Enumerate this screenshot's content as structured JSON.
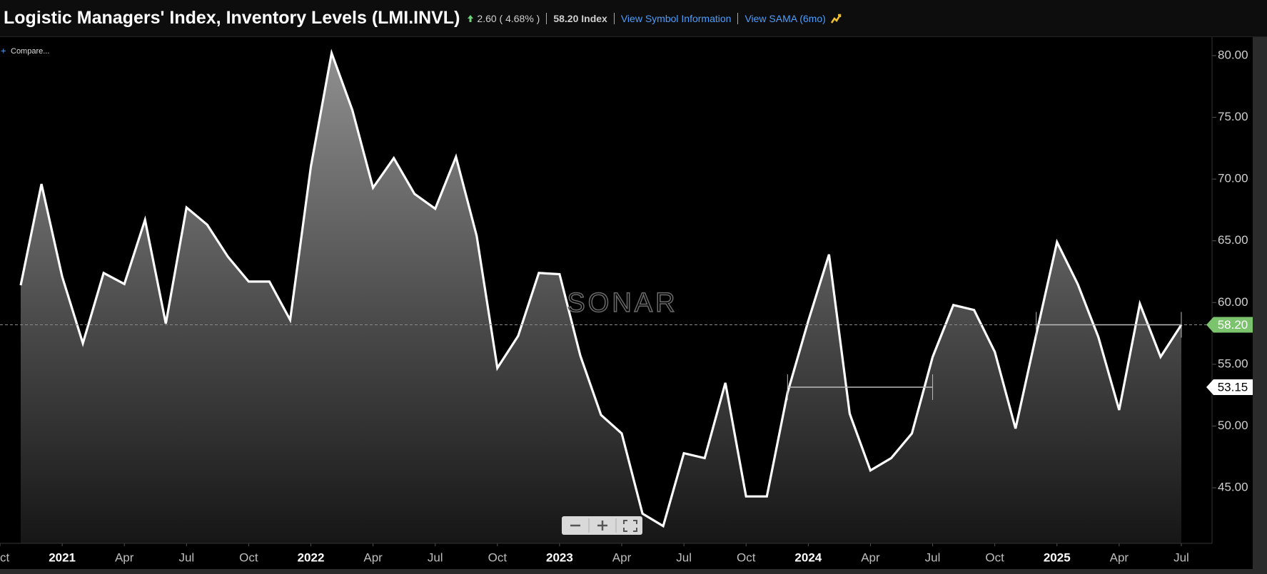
{
  "header": {
    "change": "2.60 ( 4.68% )",
    "price": "58.20 Index",
    "links": [
      "View Symbol Information",
      "View SAMA (6mo)"
    ]
  },
  "controls": {
    "compare": "Compare...",
    "watermark": "SONAR"
  },
  "chart_data": {
    "type": "line",
    "title": "Logistic Managers' Index, Inventory Levels (LMI.INVL)",
    "x": [
      "2020-11",
      "2020-12",
      "2021-01",
      "2021-02",
      "2021-03",
      "2021-04",
      "2021-05",
      "2021-06",
      "2021-07",
      "2021-08",
      "2021-09",
      "2021-10",
      "2021-11",
      "2021-12",
      "2022-01",
      "2022-02",
      "2022-03",
      "2022-04",
      "2022-05",
      "2022-06",
      "2022-07",
      "2022-08",
      "2022-09",
      "2022-10",
      "2022-11",
      "2022-12",
      "2023-01",
      "2023-02",
      "2023-03",
      "2023-04",
      "2023-05",
      "2023-06",
      "2023-07",
      "2023-08",
      "2023-09",
      "2023-10",
      "2023-11",
      "2023-12",
      "2024-01",
      "2024-02",
      "2024-03",
      "2024-04",
      "2024-05",
      "2024-06",
      "2024-07",
      "2024-08",
      "2024-09",
      "2024-10",
      "2024-11",
      "2024-12",
      "2025-01",
      "2025-02",
      "2025-03",
      "2025-04",
      "2025-05",
      "2025-06",
      "2025-07"
    ],
    "series": [
      {
        "color": "#ffffff",
        "values": [
          61.4,
          69.6,
          62.1,
          56.7,
          62.4,
          61.5,
          66.7,
          58.3,
          67.7,
          66.3,
          63.7,
          61.7,
          61.7,
          58.6,
          71.0,
          80.2,
          75.6,
          69.3,
          71.7,
          68.8,
          67.6,
          71.8,
          65.4,
          54.7,
          57.3,
          62.4,
          62.3,
          55.7,
          50.9,
          49.4,
          42.9,
          41.9,
          47.8,
          47.4,
          53.5,
          44.3,
          44.3,
          52.7,
          58.5,
          63.9,
          51.0,
          46.4,
          47.4,
          49.4,
          55.6,
          59.8,
          59.4,
          56.0,
          49.8,
          57.4,
          64.9,
          61.5,
          57.2,
          51.3,
          59.9,
          55.6,
          58.2
        ]
      }
    ],
    "current": {
      "value": 58.2,
      "label": "58.20",
      "color": "#7cc36e"
    },
    "sama": {
      "value": 53.15,
      "label": "53.15",
      "segments": [
        {
          "start": "2023-12",
          "end": "2024-07",
          "value": 53.15
        },
        {
          "start": "2024-12",
          "end": "2025-07",
          "value": 58.2
        }
      ]
    },
    "xlim": [
      "2020-10",
      "2025-08"
    ],
    "xticks": [
      {
        "value": "2020-10",
        "label": "Oct"
      },
      {
        "value": "2021-01",
        "label": "2021"
      },
      {
        "value": "2021-04",
        "label": "Apr"
      },
      {
        "value": "2021-07",
        "label": "Jul"
      },
      {
        "value": "2021-10",
        "label": "Oct"
      },
      {
        "value": "2022-01",
        "label": "2022"
      },
      {
        "value": "2022-04",
        "label": "Apr"
      },
      {
        "value": "2022-07",
        "label": "Jul"
      },
      {
        "value": "2022-10",
        "label": "Oct"
      },
      {
        "value": "2023-01",
        "label": "2023"
      },
      {
        "value": "2023-04",
        "label": "Apr"
      },
      {
        "value": "2023-07",
        "label": "Jul"
      },
      {
        "value": "2023-10",
        "label": "Oct"
      },
      {
        "value": "2024-01",
        "label": "2024"
      },
      {
        "value": "2024-04",
        "label": "Apr"
      },
      {
        "value": "2024-07",
        "label": "Jul"
      },
      {
        "value": "2024-10",
        "label": "Oct"
      },
      {
        "value": "2025-01",
        "label": "2025"
      },
      {
        "value": "2025-04",
        "label": "Apr"
      },
      {
        "value": "2025-07",
        "label": "Jul"
      }
    ],
    "ylim": [
      40.5,
      81.5
    ],
    "yticks": [
      {
        "value": 45,
        "label": "45.00"
      },
      {
        "value": 50,
        "label": "50.00"
      },
      {
        "value": 55,
        "label": "55.00"
      },
      {
        "value": 60,
        "label": "60.00"
      },
      {
        "value": 65,
        "label": "65.00"
      },
      {
        "value": 70,
        "label": "70.00"
      },
      {
        "value": 75,
        "label": "75.00"
      },
      {
        "value": 80,
        "label": "80.00"
      }
    ]
  }
}
